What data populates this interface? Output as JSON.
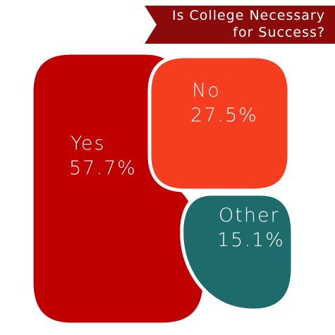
{
  "chart_data": {
    "type": "blob",
    "title": "Is College Necessary for Success?",
    "categories": [
      "Yes",
      "No",
      "Other"
    ],
    "values": [
      57.7,
      27.5,
      15.1
    ],
    "value_labels": [
      "57.7%",
      "27.5%",
      "15.1%"
    ],
    "colors": [
      "#c00000",
      "#f53d1f",
      "#1d6b6a"
    ],
    "title_color": "#8b0a0a"
  }
}
